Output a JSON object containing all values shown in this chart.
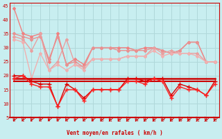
{
  "background_color": "#c8eef0",
  "grid_color": "#aadddd",
  "xlabel": "Vent moyen/en rafales ( km/h )",
  "x_ticks": [
    0,
    1,
    2,
    3,
    4,
    5,
    6,
    7,
    8,
    9,
    10,
    11,
    12,
    13,
    14,
    15,
    16,
    17,
    18,
    19,
    20,
    21,
    22,
    23
  ],
  "ylim": [
    5,
    46
  ],
  "yticks": [
    5,
    10,
    15,
    20,
    25,
    30,
    35,
    40,
    45
  ],
  "lines": [
    {
      "color": "#f08080",
      "lw": 1.0,
      "marker": "D",
      "ms": 2.0,
      "y": [
        44,
        35,
        34,
        35,
        25,
        35,
        24,
        26,
        24,
        30,
        30,
        30,
        30,
        30,
        29,
        30,
        30,
        29,
        28,
        29,
        32,
        32,
        25,
        25
      ]
    },
    {
      "color": "#e89090",
      "lw": 1.0,
      "marker": "D",
      "ms": 2.0,
      "y": [
        35,
        34,
        33,
        34,
        26,
        34,
        24,
        25,
        23,
        30,
        30,
        30,
        29,
        29,
        29,
        29,
        30,
        29,
        28,
        29,
        32,
        32,
        25,
        25
      ]
    },
    {
      "color": "#e8a0a0",
      "lw": 1.0,
      "marker": "D",
      "ms": 2.0,
      "y": [
        34,
        33,
        29,
        35,
        22,
        25,
        33,
        24,
        23,
        26,
        26,
        26,
        26,
        27,
        27,
        27,
        30,
        28,
        29,
        28,
        28,
        28,
        25,
        25
      ]
    },
    {
      "color": "#f0b0b0",
      "lw": 1.0,
      "marker": "D",
      "ms": 2.0,
      "y": [
        33,
        32,
        19,
        28,
        22,
        24,
        22,
        24,
        22,
        26,
        26,
        26,
        26,
        27,
        27,
        27,
        29,
        27,
        28,
        28,
        28,
        27,
        25,
        25
      ]
    },
    {
      "color": "#cc0000",
      "lw": 1.8,
      "marker": null,
      "ms": 0,
      "y": [
        19,
        19,
        19,
        19,
        19,
        19,
        19,
        19,
        19,
        19,
        19,
        19,
        19,
        19,
        19,
        19,
        19,
        19,
        19,
        19,
        19,
        19,
        19,
        19
      ]
    },
    {
      "color": "#cc0000",
      "lw": 1.5,
      "marker": null,
      "ms": 0,
      "y": [
        18,
        18,
        18,
        18,
        18,
        18,
        18,
        18,
        18,
        18,
        18,
        18,
        18,
        18,
        18,
        18,
        18,
        18,
        18,
        18,
        18,
        18,
        18,
        18
      ]
    },
    {
      "color": "#dd0000",
      "lw": 1.0,
      "marker": "+",
      "ms": 4.0,
      "y": [
        20,
        20,
        18,
        17,
        17,
        9,
        17,
        15,
        12,
        15,
        15,
        15,
        15,
        19,
        19,
        18,
        19,
        19,
        13,
        17,
        16,
        15,
        13,
        18
      ]
    },
    {
      "color": "#ff2020",
      "lw": 1.0,
      "marker": "+",
      "ms": 4.0,
      "y": [
        19,
        20,
        17,
        16,
        16,
        9,
        15,
        15,
        11,
        15,
        15,
        15,
        15,
        18,
        18,
        17,
        19,
        18,
        12,
        16,
        15,
        15,
        13,
        17
      ]
    }
  ]
}
